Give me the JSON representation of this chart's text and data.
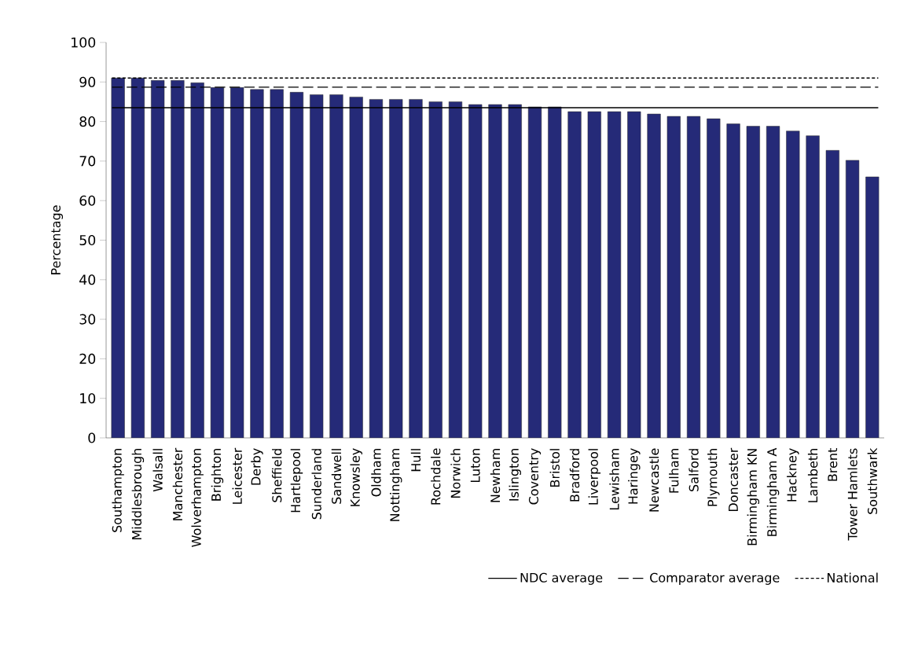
{
  "chart_data": {
    "type": "bar",
    "ylabel": "Percentage",
    "categories": [
      "Southampton",
      "Middlesbrough",
      "Walsall",
      "Manchester",
      "Wolverhampton",
      "Brighton",
      "Leicester",
      "Derby",
      "Sheffield",
      "Hartlepool",
      "Sunderland",
      "Sandwell",
      "Knowsley",
      "Oldham",
      "Nottingham",
      "Hull",
      "Rochdale",
      "Norwich",
      "Luton",
      "Newham",
      "Islington",
      "Coventry",
      "Bristol",
      "Bradford",
      "Liverpool",
      "Lewisham",
      "Haringey",
      "Newcastle",
      "Fulham",
      "Salford",
      "Plymouth",
      "Doncaster",
      "Birmingham KN",
      "Birmingham A",
      "Hackney",
      "Lambeth",
      "Brent",
      "Tower Hamlets",
      "Southwark"
    ],
    "values": [
      91,
      91,
      90.4,
      90.4,
      89.8,
      88.6,
      88.6,
      88.1,
      88.1,
      87.4,
      86.8,
      86.8,
      86.2,
      85.6,
      85.6,
      85.6,
      85,
      85,
      84.3,
      84.3,
      84.3,
      83.7,
      83.7,
      82.5,
      82.5,
      82.5,
      82.5,
      81.9,
      81.3,
      81.3,
      80.7,
      79.4,
      78.8,
      78.8,
      77.6,
      76.4,
      72.7,
      70.2,
      66
    ],
    "color": "#252a78",
    "ylim": [
      0,
      100
    ],
    "yticks": [
      0,
      10,
      20,
      30,
      40,
      50,
      60,
      70,
      80,
      90,
      100
    ],
    "ref_lines": [
      {
        "axis": "y",
        "value": 83.5,
        "label": "NDC average",
        "line_style": "solid",
        "color": "#000000"
      },
      {
        "axis": "y",
        "value": 88.7,
        "label": "Comparator average",
        "line_style": "dashed",
        "color": "#000000"
      },
      {
        "axis": "y",
        "value": 91,
        "label": "National",
        "line_style": "dotted",
        "color": "#000000"
      }
    ],
    "legend": "bottom right",
    "grid": false
  }
}
